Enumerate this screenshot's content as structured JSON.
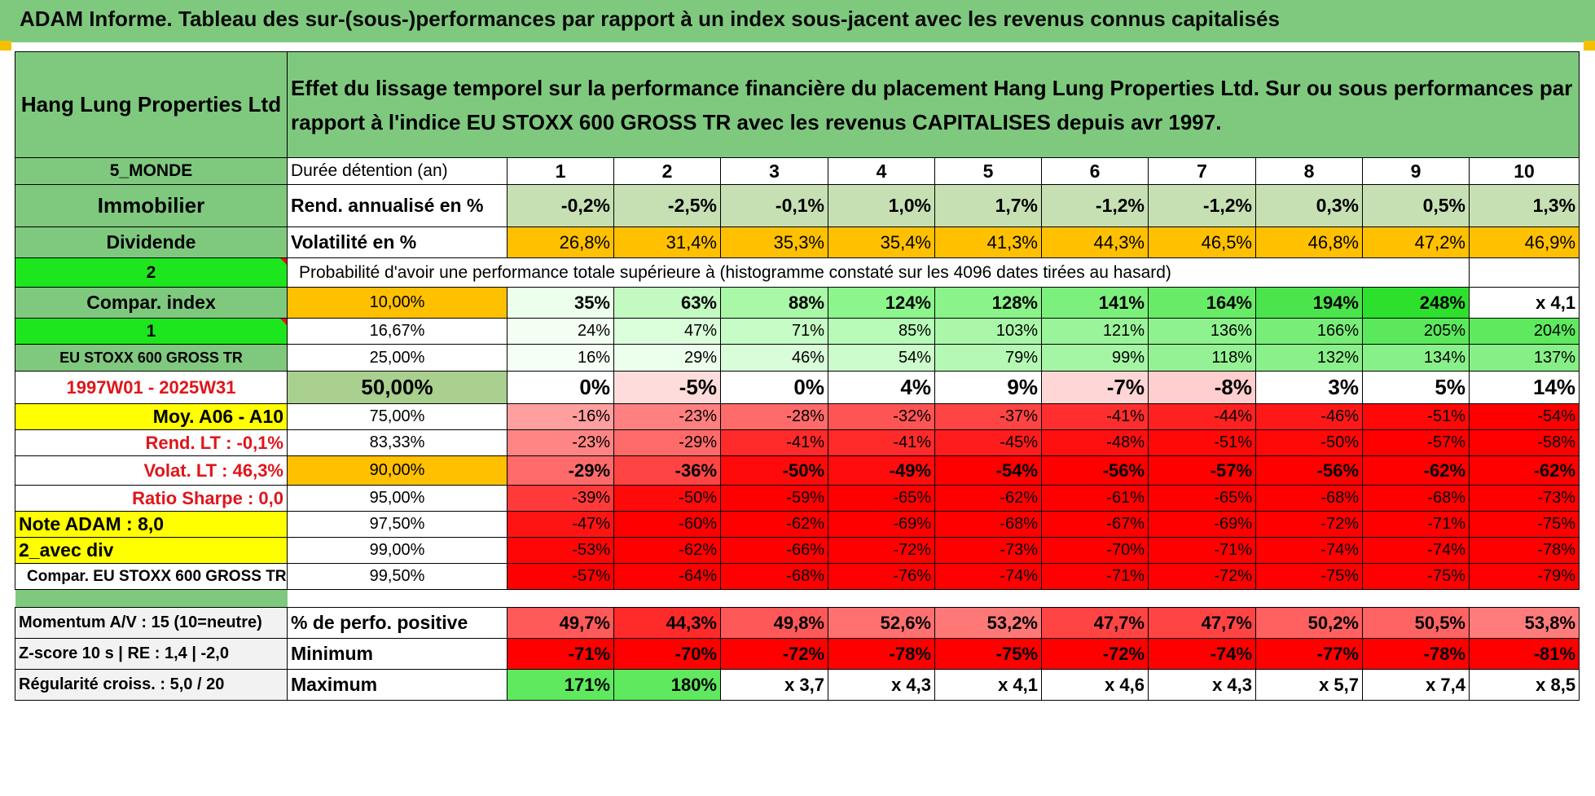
{
  "title": "ADAM Informe. Tableau des sur-(sous-)performances par rapport à un index sous-jacent avec les revenus connus capitalisés",
  "company": "Hang Lung Properties Ltd",
  "description": "Effet du lissage temporel sur la performance financière du placement Hang Lung Properties Ltd. Sur ou sous performances par rapport à l'indice EU STOXX 600 GROSS TR avec les revenus CAPITALISES depuis avr 1997.",
  "left": {
    "region": "5_MONDE",
    "sector": "Immobilier",
    "type": "Dividende",
    "num1": "2",
    "compar": "Compar. index",
    "num2": "1",
    "index": "EU STOXX 600 GROSS TR",
    "period": "1997W01 - 2025W31",
    "moy": "Moy. A06 - A10",
    "rend": "Rend. LT :    -0,1%",
    "volat": "Volat. LT :    46,3%",
    "sharpe": "Ratio Sharpe :    0,0",
    "note": "Note ADAM : 8,0",
    "avecdiv": "2_avec div",
    "compar2": "Compar. EU STOXX 600 GROSS TR",
    "momentum": "Momentum A/V : 15 (10=neutre)",
    "zscore": "Z-score 10 s | RE : 1,4 | -2,0",
    "regul": "Régularité croiss. : 5,0 / 20"
  },
  "labels": {
    "duree": "Durée détention (an)",
    "rend": "Rend. annualisé en %",
    "vol": "Volatilité en %",
    "proba": "Probabilité d'avoir une performance totale supérieure à (histogramme constaté sur les 4096 dates tirées au hasard)",
    "pos": "% de perfo. positive",
    "min": "Minimum",
    "max": "Maximum"
  },
  "years": [
    "1",
    "2",
    "3",
    "4",
    "5",
    "6",
    "7",
    "8",
    "9",
    "10"
  ],
  "rend": [
    "-0,2%",
    "-2,5%",
    "-0,1%",
    "1,0%",
    "1,7%",
    "-1,2%",
    "-1,2%",
    "0,3%",
    "0,5%",
    "1,3%"
  ],
  "vol": [
    "26,8%",
    "31,4%",
    "35,3%",
    "35,4%",
    "41,3%",
    "44,3%",
    "46,5%",
    "46,8%",
    "47,2%",
    "46,9%"
  ],
  "perc": [
    {
      "p": "10,00%",
      "v": [
        "35%",
        "63%",
        "88%",
        "124%",
        "128%",
        "141%",
        "164%",
        "194%",
        "248%",
        "x 4,1"
      ]
    },
    {
      "p": "16,67%",
      "v": [
        "24%",
        "47%",
        "71%",
        "85%",
        "103%",
        "121%",
        "136%",
        "166%",
        "205%",
        "204%"
      ]
    },
    {
      "p": "25,00%",
      "v": [
        "16%",
        "29%",
        "46%",
        "54%",
        "79%",
        "99%",
        "118%",
        "132%",
        "134%",
        "137%"
      ]
    },
    {
      "p": "50,00%",
      "v": [
        "0%",
        "-5%",
        "0%",
        "4%",
        "9%",
        "-7%",
        "-8%",
        "3%",
        "5%",
        "14%"
      ]
    },
    {
      "p": "75,00%",
      "v": [
        "-16%",
        "-23%",
        "-28%",
        "-32%",
        "-37%",
        "-41%",
        "-44%",
        "-46%",
        "-51%",
        "-54%"
      ]
    },
    {
      "p": "83,33%",
      "v": [
        "-23%",
        "-29%",
        "-41%",
        "-41%",
        "-45%",
        "-48%",
        "-51%",
        "-50%",
        "-57%",
        "-58%"
      ]
    },
    {
      "p": "90,00%",
      "v": [
        "-29%",
        "-36%",
        "-50%",
        "-49%",
        "-54%",
        "-56%",
        "-57%",
        "-56%",
        "-62%",
        "-62%"
      ]
    },
    {
      "p": "95,00%",
      "v": [
        "-39%",
        "-50%",
        "-59%",
        "-65%",
        "-62%",
        "-61%",
        "-65%",
        "-68%",
        "-68%",
        "-73%"
      ]
    },
    {
      "p": "97,50%",
      "v": [
        "-47%",
        "-60%",
        "-62%",
        "-69%",
        "-68%",
        "-67%",
        "-69%",
        "-72%",
        "-71%",
        "-75%"
      ]
    },
    {
      "p": "99,00%",
      "v": [
        "-53%",
        "-62%",
        "-66%",
        "-72%",
        "-73%",
        "-70%",
        "-71%",
        "-74%",
        "-74%",
        "-78%"
      ]
    },
    {
      "p": "99,50%",
      "v": [
        "-57%",
        "-64%",
        "-68%",
        "-76%",
        "-74%",
        "-71%",
        "-72%",
        "-75%",
        "-75%",
        "-79%"
      ]
    }
  ],
  "pos": [
    "49,7%",
    "44,3%",
    "49,8%",
    "52,6%",
    "53,2%",
    "47,7%",
    "47,7%",
    "50,2%",
    "50,5%",
    "53,8%"
  ],
  "min": [
    "-71%",
    "-70%",
    "-72%",
    "-78%",
    "-75%",
    "-72%",
    "-74%",
    "-77%",
    "-78%",
    "-81%"
  ],
  "max": [
    "171%",
    "180%",
    "x 3,7",
    "x 4,3",
    "x 4,1",
    "x 4,6",
    "x 4,3",
    "x 5,7",
    "x 7,4",
    "x 8,5"
  ],
  "colors": {
    "rend": [
      "#c6e0b4",
      "#c6e0b4",
      "#c6e0b4",
      "#c6e0b4",
      "#c6e0b4",
      "#c6e0b4",
      "#c6e0b4",
      "#c6e0b4",
      "#c6e0b4",
      "#c6e0b4"
    ],
    "perc": [
      [
        "#ecffec",
        "#c2fac2",
        "#a8f8a8",
        "#8cf58c",
        "#8af48a",
        "#7cf07c",
        "#68ec68",
        "#4ce44c",
        "#2ee02e",
        "#ffffff"
      ],
      [
        "#f2fff2",
        "#daffda",
        "#c6fcc6",
        "#b8fab8",
        "#aaf7aa",
        "#9af59a",
        "#8ef28e",
        "#78ee78",
        "#5ce85c",
        "#5ee95e"
      ],
      [
        "#f6fff6",
        "#ecffec",
        "#d8fdd8",
        "#ccfbcc",
        "#b4f8b4",
        "#a4f5a4",
        "#94f294",
        "#8af08a",
        "#88f088",
        "#86ef86"
      ],
      [
        "#ffffff",
        "#ffdcdc",
        "#ffffff",
        "#ffffff",
        "#ffffff",
        "#ffd6d6",
        "#ffcece",
        "#ffffff",
        "#ffffff",
        "#ffffff"
      ],
      [
        "#ff9f9f",
        "#ff8080",
        "#ff6a6a",
        "#ff5454",
        "#ff4444",
        "#ff2e2e",
        "#ff2020",
        "#ff1818",
        "#ff0808",
        "#ff0000"
      ],
      [
        "#ff8585",
        "#ff6a6a",
        "#ff2a2a",
        "#ff2a2a",
        "#ff1c1c",
        "#ff1010",
        "#ff0808",
        "#ff0808",
        "#ff0000",
        "#ff0000"
      ],
      [
        "#ff6a6a",
        "#ff4444",
        "#ff0a0a",
        "#ff0c0c",
        "#ff0000",
        "#ff0000",
        "#ff0000",
        "#ff0000",
        "#ff0000",
        "#ff0000"
      ],
      [
        "#ff3a3a",
        "#ff0a0a",
        "#ff0000",
        "#ff0000",
        "#ff0000",
        "#ff0000",
        "#ff0000",
        "#ff0000",
        "#ff0000",
        "#ff0000"
      ],
      [
        "#ff1414",
        "#ff0000",
        "#ff0000",
        "#ff0000",
        "#ff0000",
        "#ff0000",
        "#ff0000",
        "#ff0000",
        "#ff0000",
        "#ff0000"
      ],
      [
        "#ff0606",
        "#ff0000",
        "#ff0000",
        "#ff0000",
        "#ff0000",
        "#ff0000",
        "#ff0000",
        "#ff0000",
        "#ff0000",
        "#ff0000"
      ],
      [
        "#ff0000",
        "#ff0000",
        "#ff0000",
        "#ff0000",
        "#ff0000",
        "#ff0000",
        "#ff0000",
        "#ff0000",
        "#ff0000",
        "#ff0000"
      ]
    ],
    "pos": [
      "#ff5a5a",
      "#ff2a2a",
      "#ff5858",
      "#ff7070",
      "#ff7878",
      "#ff4444",
      "#ff4444",
      "#ff6060",
      "#ff6464",
      "#ff7c7c"
    ],
    "min": [
      "#ff0000",
      "#ff0000",
      "#ff0000",
      "#ff0000",
      "#ff0000",
      "#ff0000",
      "#ff0000",
      "#ff0000",
      "#ff0000",
      "#ff0000"
    ],
    "max": [
      "#5ee95e",
      "#5ee95e",
      "#ffffff",
      "#ffffff",
      "#ffffff",
      "#ffffff",
      "#ffffff",
      "#ffffff",
      "#ffffff",
      "#ffffff"
    ]
  }
}
